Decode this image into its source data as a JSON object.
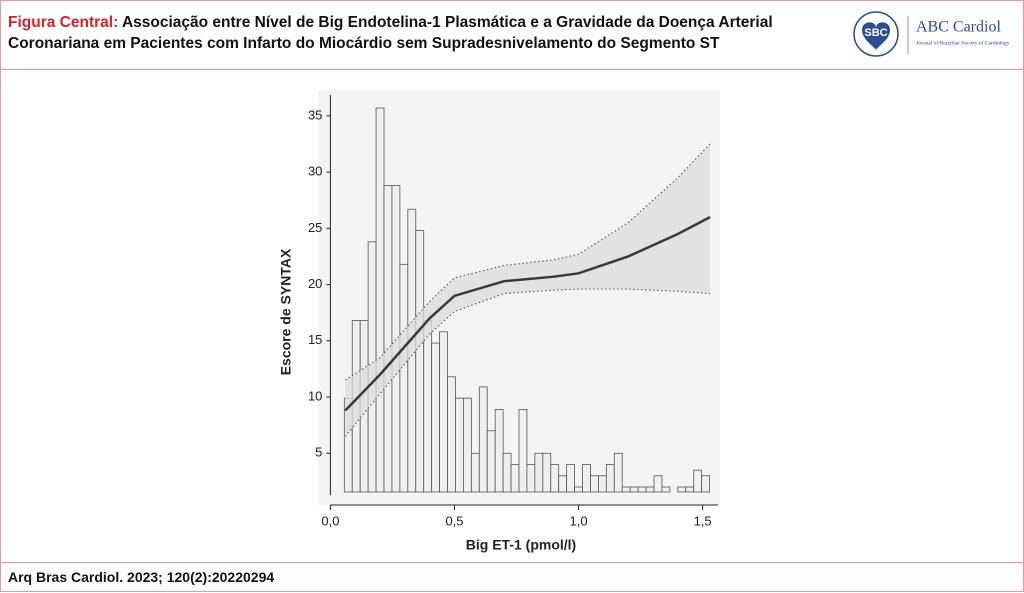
{
  "header": {
    "label": "Figura Central:",
    "title_lines": [
      "Associação entre Nível de Big Endotelina-1 Plasmática e a Gravidade da Doença Arterial",
      "Coronariana em Pacientes com Infarto do Miocárdio sem Supradesnivelamento do Segmento ST"
    ],
    "logo_sbc": "SBC",
    "logo_journal": "ABC Cardiol",
    "logo_journal_sub": "Journal of Brazilian Society of Cardiology"
  },
  "chart_data": {
    "type": "histogram",
    "x_label": "Big ET-1 (pmol/l)",
    "y_label": "Escore de SYNTAX",
    "xlim": [
      -0.05,
      1.57
    ],
    "ylim": [
      0.4,
      37.3
    ],
    "xticks": [
      {
        "value": 0,
        "label": "0,0"
      },
      {
        "value": 0.5,
        "label": "0,5"
      },
      {
        "value": 1,
        "label": "1,0"
      },
      {
        "value": 1.5,
        "label": "1,5"
      }
    ],
    "yticks": [
      5,
      10,
      15,
      20,
      25,
      30,
      35
    ],
    "bins": [
      0.056,
      0.088,
      0.12,
      0.152,
      0.184,
      0.216,
      0.248,
      0.28,
      0.312,
      0.344,
      0.376,
      0.408,
      0.44,
      0.472,
      0.504,
      0.536,
      0.568,
      0.6,
      0.632,
      0.664,
      0.696,
      0.728,
      0.76,
      0.792,
      0.824,
      0.856,
      0.888,
      0.92,
      0.952,
      0.984,
      1.016,
      1.048,
      1.08,
      1.112,
      1.144,
      1.176,
      1.208,
      1.24,
      1.272,
      1.304,
      1.336,
      1.368,
      1.4,
      1.432,
      1.464,
      1.496,
      1.528
    ],
    "values": [
      9.9,
      16.8,
      16.8,
      23.8,
      35.7,
      28.8,
      28.8,
      21.8,
      26.7,
      24.8,
      16.8,
      14.8,
      15.8,
      11.8,
      9.9,
      9.9,
      5,
      10.9,
      7,
      8.9,
      5,
      4,
      8.9,
      4,
      5,
      5,
      4,
      3,
      4,
      2,
      4,
      3,
      3,
      4,
      5,
      2,
      2,
      2,
      2,
      3,
      2,
      null,
      2,
      2,
      3.5,
      3
    ],
    "bar_color": "#efefef",
    "curve": {
      "x": [
        0.06,
        0.2,
        0.4,
        0.5,
        0.7,
        0.9,
        1.0,
        1.2,
        1.4,
        1.53
      ],
      "values": [
        8.8,
        12,
        17,
        19,
        20.3,
        20.7,
        21,
        22.5,
        24.5,
        26
      ],
      "lower": [
        6.5,
        10.3,
        15.6,
        17.6,
        19.2,
        19.5,
        19.6,
        19.6,
        19.4,
        19.2
      ],
      "upper": [
        11.5,
        13.5,
        18.5,
        20.6,
        21.7,
        22.2,
        22.7,
        25.5,
        29.5,
        32.5
      ],
      "color": "#3a3a3a",
      "band_color": "#dcdcdc"
    }
  },
  "footer": {
    "citation": "Arq Bras Cardiol. 2023; 120(2):20220294"
  }
}
